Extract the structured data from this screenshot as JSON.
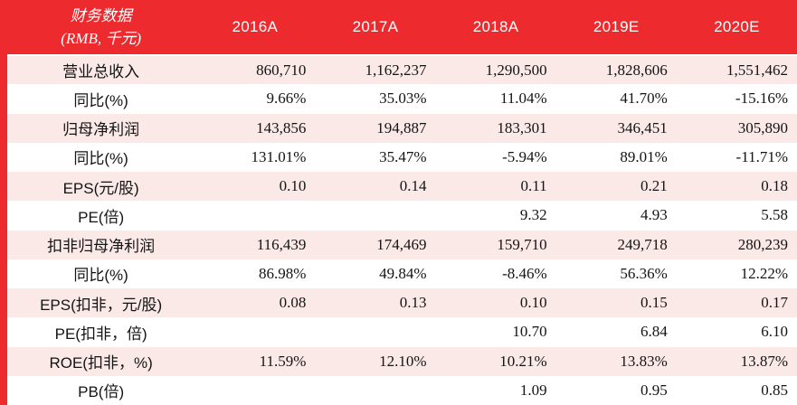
{
  "table": {
    "header": {
      "label_line1": "财务数据",
      "label_line2": "(RMB, 千元)",
      "years": [
        "2016A",
        "2017A",
        "2018A",
        "2019E",
        "2020E"
      ]
    },
    "rows": [
      {
        "label": "营业总收入",
        "values": [
          "860,710",
          "1,162,237",
          "1,290,500",
          "1,828,606",
          "1,551,462"
        ]
      },
      {
        "label": "同比(%)",
        "values": [
          "9.66%",
          "35.03%",
          "11.04%",
          "41.70%",
          "-15.16%"
        ]
      },
      {
        "label": "归母净利润",
        "values": [
          "143,856",
          "194,887",
          "183,301",
          "346,451",
          "305,890"
        ]
      },
      {
        "label": "同比(%)",
        "values": [
          "131.01%",
          "35.47%",
          "-5.94%",
          "89.01%",
          "-11.71%"
        ]
      },
      {
        "label": "EPS(元/股)",
        "values": [
          "0.10",
          "0.14",
          "0.11",
          "0.21",
          "0.18"
        ]
      },
      {
        "label": "PE(倍)",
        "values": [
          "",
          "",
          "9.32",
          "4.93",
          "5.58"
        ]
      },
      {
        "label": "扣非归母净利润",
        "values": [
          "116,439",
          "174,469",
          "159,710",
          "249,718",
          "280,239"
        ]
      },
      {
        "label": "同比(%)",
        "values": [
          "86.98%",
          "49.84%",
          "-8.46%",
          "56.36%",
          "12.22%"
        ]
      },
      {
        "label": "EPS(扣非，元/股)",
        "values": [
          "0.08",
          "0.13",
          "0.10",
          "0.15",
          "0.17"
        ]
      },
      {
        "label": "PE(扣非，倍)",
        "values": [
          "",
          "",
          "10.70",
          "6.84",
          "6.10"
        ]
      },
      {
        "label": "ROE(扣非，%)",
        "values": [
          "11.59%",
          "12.10%",
          "10.21%",
          "13.83%",
          "13.87%"
        ]
      },
      {
        "label": "PB(倍)",
        "values": [
          "",
          "",
          "1.09",
          "0.95",
          "0.85"
        ]
      }
    ],
    "colors": {
      "header_red": "#ED2A2E",
      "row_pink": "#FBE9E8",
      "row_white": "#FFFFFF",
      "header_text": "#FFFFFF",
      "body_text": "#141414"
    }
  }
}
